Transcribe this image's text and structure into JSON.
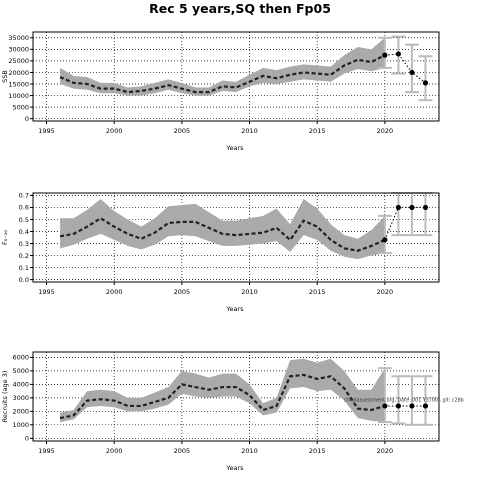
{
  "title": "Rec 5 years,SQ then Fp05",
  "annotation": "stockassessment.org, Date: 001 Y3700 , git: c28b",
  "colors": {
    "band": "#aaaaaa",
    "line": "#222222",
    "proj_bar": "#bbbbbb",
    "point": "#000000"
  },
  "chart_data": [
    {
      "type": "line",
      "name": "panel-ssb",
      "xlabel": "Years",
      "ylabel": "SSB",
      "xlim": [
        1994,
        2024
      ],
      "ylim": [
        -1000,
        37500
      ],
      "xticks": [
        1995,
        2000,
        2005,
        2010,
        2015,
        2020
      ],
      "yticks": [
        0,
        5000,
        10000,
        15000,
        20000,
        25000,
        30000,
        35000
      ],
      "grid": true,
      "x": [
        1996,
        1997,
        1998,
        1999,
        2000,
        2001,
        2002,
        2003,
        2004,
        2005,
        2006,
        2007,
        2008,
        2009,
        2010,
        2011,
        2012,
        2013,
        2014,
        2015,
        2016,
        2017,
        2018,
        2019,
        2020
      ],
      "estimate": [
        18000,
        15500,
        15000,
        13000,
        13000,
        11500,
        12000,
        13000,
        14500,
        13000,
        11500,
        11500,
        14000,
        13500,
        16000,
        18500,
        17500,
        19000,
        20000,
        19500,
        19000,
        23000,
        25500,
        24500,
        27500
      ],
      "lower": [
        15000,
        13000,
        12500,
        11000,
        11000,
        10000,
        10000,
        11000,
        12500,
        11000,
        10000,
        10000,
        12000,
        11500,
        14000,
        15500,
        15000,
        16000,
        17000,
        16500,
        16000,
        19500,
        21500,
        20500,
        22000
      ],
      "upper": [
        22000,
        18500,
        18000,
        15500,
        15500,
        13500,
        14000,
        15500,
        17000,
        15500,
        13500,
        13500,
        16500,
        16000,
        19000,
        22000,
        21000,
        22500,
        23500,
        23000,
        22500,
        27500,
        31000,
        30000,
        35000
      ],
      "projection": {
        "years": [
          2020,
          2021,
          2022,
          2023
        ],
        "median": [
          27500,
          28000,
          20000,
          15500
        ],
        "low": [
          22000,
          19500,
          11500,
          8000
        ],
        "high": [
          35000,
          35500,
          32000,
          27000
        ]
      }
    },
    {
      "type": "line",
      "name": "panel-f",
      "xlabel": "Years",
      "ylabel": "F₆₋₁₀",
      "xlim": [
        1994,
        2024
      ],
      "ylim": [
        -0.02,
        0.72
      ],
      "xticks": [
        1995,
        2000,
        2005,
        2010,
        2015,
        2020
      ],
      "yticks": [
        0.0,
        0.1,
        0.2,
        0.3,
        0.4,
        0.5,
        0.6,
        0.7
      ],
      "grid": true,
      "x": [
        1996,
        1997,
        1998,
        1999,
        2000,
        2001,
        2002,
        2003,
        2004,
        2005,
        2006,
        2007,
        2008,
        2009,
        2010,
        2011,
        2012,
        2013,
        2014,
        2015,
        2016,
        2017,
        2018,
        2019,
        2020
      ],
      "estimate": [
        0.36,
        0.38,
        0.44,
        0.51,
        0.44,
        0.38,
        0.34,
        0.39,
        0.47,
        0.48,
        0.48,
        0.43,
        0.38,
        0.37,
        0.38,
        0.39,
        0.43,
        0.33,
        0.49,
        0.44,
        0.33,
        0.26,
        0.24,
        0.28,
        0.33
      ],
      "lower": [
        0.26,
        0.29,
        0.34,
        0.38,
        0.33,
        0.28,
        0.25,
        0.29,
        0.36,
        0.37,
        0.36,
        0.32,
        0.28,
        0.28,
        0.29,
        0.3,
        0.32,
        0.23,
        0.37,
        0.33,
        0.24,
        0.19,
        0.17,
        0.2,
        0.22
      ],
      "upper": [
        0.51,
        0.51,
        0.58,
        0.67,
        0.57,
        0.5,
        0.44,
        0.51,
        0.61,
        0.62,
        0.63,
        0.56,
        0.49,
        0.49,
        0.51,
        0.53,
        0.59,
        0.46,
        0.67,
        0.59,
        0.46,
        0.37,
        0.34,
        0.41,
        0.53
      ],
      "projection": {
        "years": [
          2020,
          2021,
          2022,
          2023
        ],
        "median": [
          0.33,
          0.6,
          0.6,
          0.6
        ],
        "low": [
          0.22,
          0.37,
          0.37,
          0.37
        ],
        "high": [
          0.53,
          0.72,
          0.72,
          0.72
        ]
      }
    },
    {
      "type": "line",
      "name": "panel-recruits",
      "xlabel": "Years",
      "ylabel": "Recruits (age 3)",
      "xlim": [
        1994,
        2024
      ],
      "ylim": [
        -200,
        6400
      ],
      "xticks": [
        1995,
        2000,
        2005,
        2010,
        2015,
        2020
      ],
      "yticks": [
        0,
        1000,
        2000,
        3000,
        4000,
        5000,
        6000
      ],
      "grid": true,
      "x": [
        1996,
        1997,
        1998,
        1999,
        2000,
        2001,
        2002,
        2003,
        2004,
        2005,
        2006,
        2007,
        2008,
        2009,
        2010,
        2011,
        2012,
        2013,
        2014,
        2015,
        2016,
        2017,
        2018,
        2019,
        2020
      ],
      "estimate": [
        1500,
        1700,
        2800,
        2900,
        2800,
        2400,
        2400,
        2700,
        3000,
        4000,
        3800,
        3600,
        3800,
        3800,
        3200,
        2100,
        2400,
        4600,
        4700,
        4400,
        4600,
        3700,
        2200,
        2100,
        2400
      ],
      "lower": [
        1200,
        1400,
        2300,
        2400,
        2300,
        2000,
        2000,
        2200,
        2500,
        3300,
        3100,
        3000,
        3100,
        3100,
        2600,
        1700,
        1900,
        3700,
        3800,
        3500,
        3600,
        2800,
        1500,
        1300,
        1200
      ],
      "upper": [
        1900,
        2100,
        3500,
        3600,
        3500,
        3000,
        3000,
        3400,
        3800,
        5000,
        4800,
        4500,
        4800,
        4800,
        4000,
        2600,
        3000,
        5800,
        5900,
        5600,
        5900,
        5000,
        3600,
        3600,
        5200
      ],
      "projection": {
        "years": [
          2020,
          2021,
          2022,
          2023
        ],
        "median": [
          2400,
          2400,
          2400,
          2400
        ],
        "low": [
          1200,
          1100,
          1000,
          1000
        ],
        "high": [
          5200,
          4600,
          4600,
          4600
        ]
      }
    }
  ]
}
